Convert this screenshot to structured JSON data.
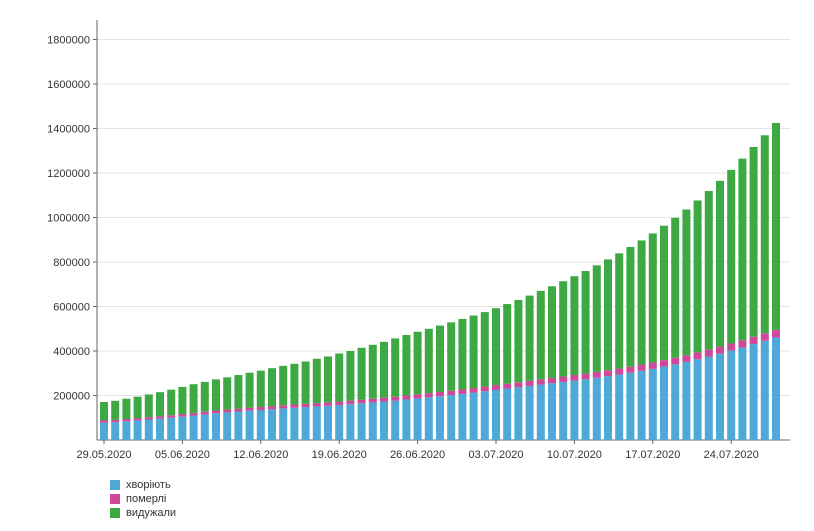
{
  "chart_data": {
    "type": "bar",
    "stacked": true,
    "x": [
      "29.05.2020",
      "30.05.2020",
      "31.05.2020",
      "01.06.2020",
      "02.06.2020",
      "03.06.2020",
      "04.06.2020",
      "05.06.2020",
      "06.06.2020",
      "07.06.2020",
      "08.06.2020",
      "09.06.2020",
      "10.06.2020",
      "11.06.2020",
      "12.06.2020",
      "13.06.2020",
      "14.06.2020",
      "15.06.2020",
      "16.06.2020",
      "17.06.2020",
      "18.06.2020",
      "19.06.2020",
      "20.06.2020",
      "21.06.2020",
      "22.06.2020",
      "23.06.2020",
      "24.06.2020",
      "25.06.2020",
      "26.06.2020",
      "27.06.2020",
      "28.06.2020",
      "29.06.2020",
      "30.06.2020",
      "01.07.2020",
      "02.07.2020",
      "03.07.2020",
      "04.07.2020",
      "05.07.2020",
      "06.07.2020",
      "07.07.2020",
      "08.07.2020",
      "09.07.2020",
      "10.07.2020",
      "11.07.2020",
      "12.07.2020",
      "13.07.2020",
      "14.07.2020",
      "15.07.2020",
      "16.07.2020",
      "17.07.2020",
      "18.07.2020",
      "19.07.2020",
      "20.07.2020",
      "21.07.2020",
      "22.07.2020",
      "23.07.2020",
      "24.07.2020",
      "25.07.2020",
      "26.07.2020",
      "27.07.2020",
      "28.07.2020"
    ],
    "x_tick_labels": [
      "29.05.2020",
      "05.06.2020",
      "12.06.2020",
      "19.06.2020",
      "26.06.2020",
      "03.07.2020",
      "10.07.2020",
      "17.07.2020",
      "24.07.2020"
    ],
    "series": [
      {
        "name": "хворіють",
        "color": "#4ea9d9",
        "values": [
          78000,
          80000,
          84000,
          88000,
          92000,
          96000,
          100000,
          105000,
          110000,
          115000,
          120000,
          124000,
          128000,
          132000,
          135000,
          138000,
          142000,
          145000,
          148000,
          151000,
          154000,
          157000,
          161000,
          165000,
          169000,
          173000,
          177000,
          182000,
          187000,
          192000,
          197000,
          202000,
          207000,
          213000,
          219000,
          225000,
          231000,
          237000,
          243000,
          249000,
          255000,
          261000,
          267000,
          273000,
          280000,
          287000,
          294000,
          302000,
          311000,
          320000,
          330000,
          340000,
          351000,
          363000,
          375000,
          388000,
          402000,
          416000,
          431000,
          446000,
          461000
        ]
      },
      {
        "name": "померлі",
        "color": "#d0489a",
        "values": [
          10000,
          10200,
          10400,
          10600,
          10800,
          11000,
          11200,
          11500,
          11800,
          12100,
          12400,
          12700,
          13000,
          13300,
          13600,
          13900,
          14200,
          14500,
          14800,
          15100,
          15400,
          15700,
          16000,
          16400,
          16800,
          17200,
          17600,
          18000,
          18400,
          18800,
          19200,
          19600,
          20000,
          20500,
          21000,
          21500,
          22000,
          22500,
          23000,
          23500,
          24000,
          24500,
          25000,
          25500,
          26000,
          26500,
          27000,
          27500,
          28000,
          28500,
          29000,
          29500,
          30000,
          30500,
          31000,
          31500,
          32000,
          32500,
          33000,
          33500,
          34000
        ]
      },
      {
        "name": "видужали",
        "color": "#3ea843",
        "values": [
          83000,
          86000,
          91000,
          96000,
          102000,
          108000,
          115000,
          122000,
          129000,
          134000,
          140000,
          145000,
          151000,
          157000,
          163000,
          171000,
          177000,
          183000,
          190000,
          199000,
          206000,
          216000,
          223000,
          233000,
          242000,
          251000,
          262000,
          272000,
          281000,
          289000,
          298000,
          307000,
          317000,
          326000,
          335000,
          346000,
          358000,
          370000,
          383000,
          398000,
          412000,
          428000,
          444000,
          461000,
          479000,
          498000,
          518000,
          538000,
          558000,
          580000,
          604000,
          629000,
          655000,
          683000,
          713000,
          745000,
          780000,
          816000,
          853000,
          890000,
          930000
        ]
      }
    ],
    "y_ticks": [
      200000,
      400000,
      600000,
      800000,
      1000000,
      1200000,
      1400000,
      1600000,
      1800000
    ],
    "ylim": [
      0,
      1800000
    ],
    "grid": "horizontal",
    "legend_position": "bottom-left"
  }
}
